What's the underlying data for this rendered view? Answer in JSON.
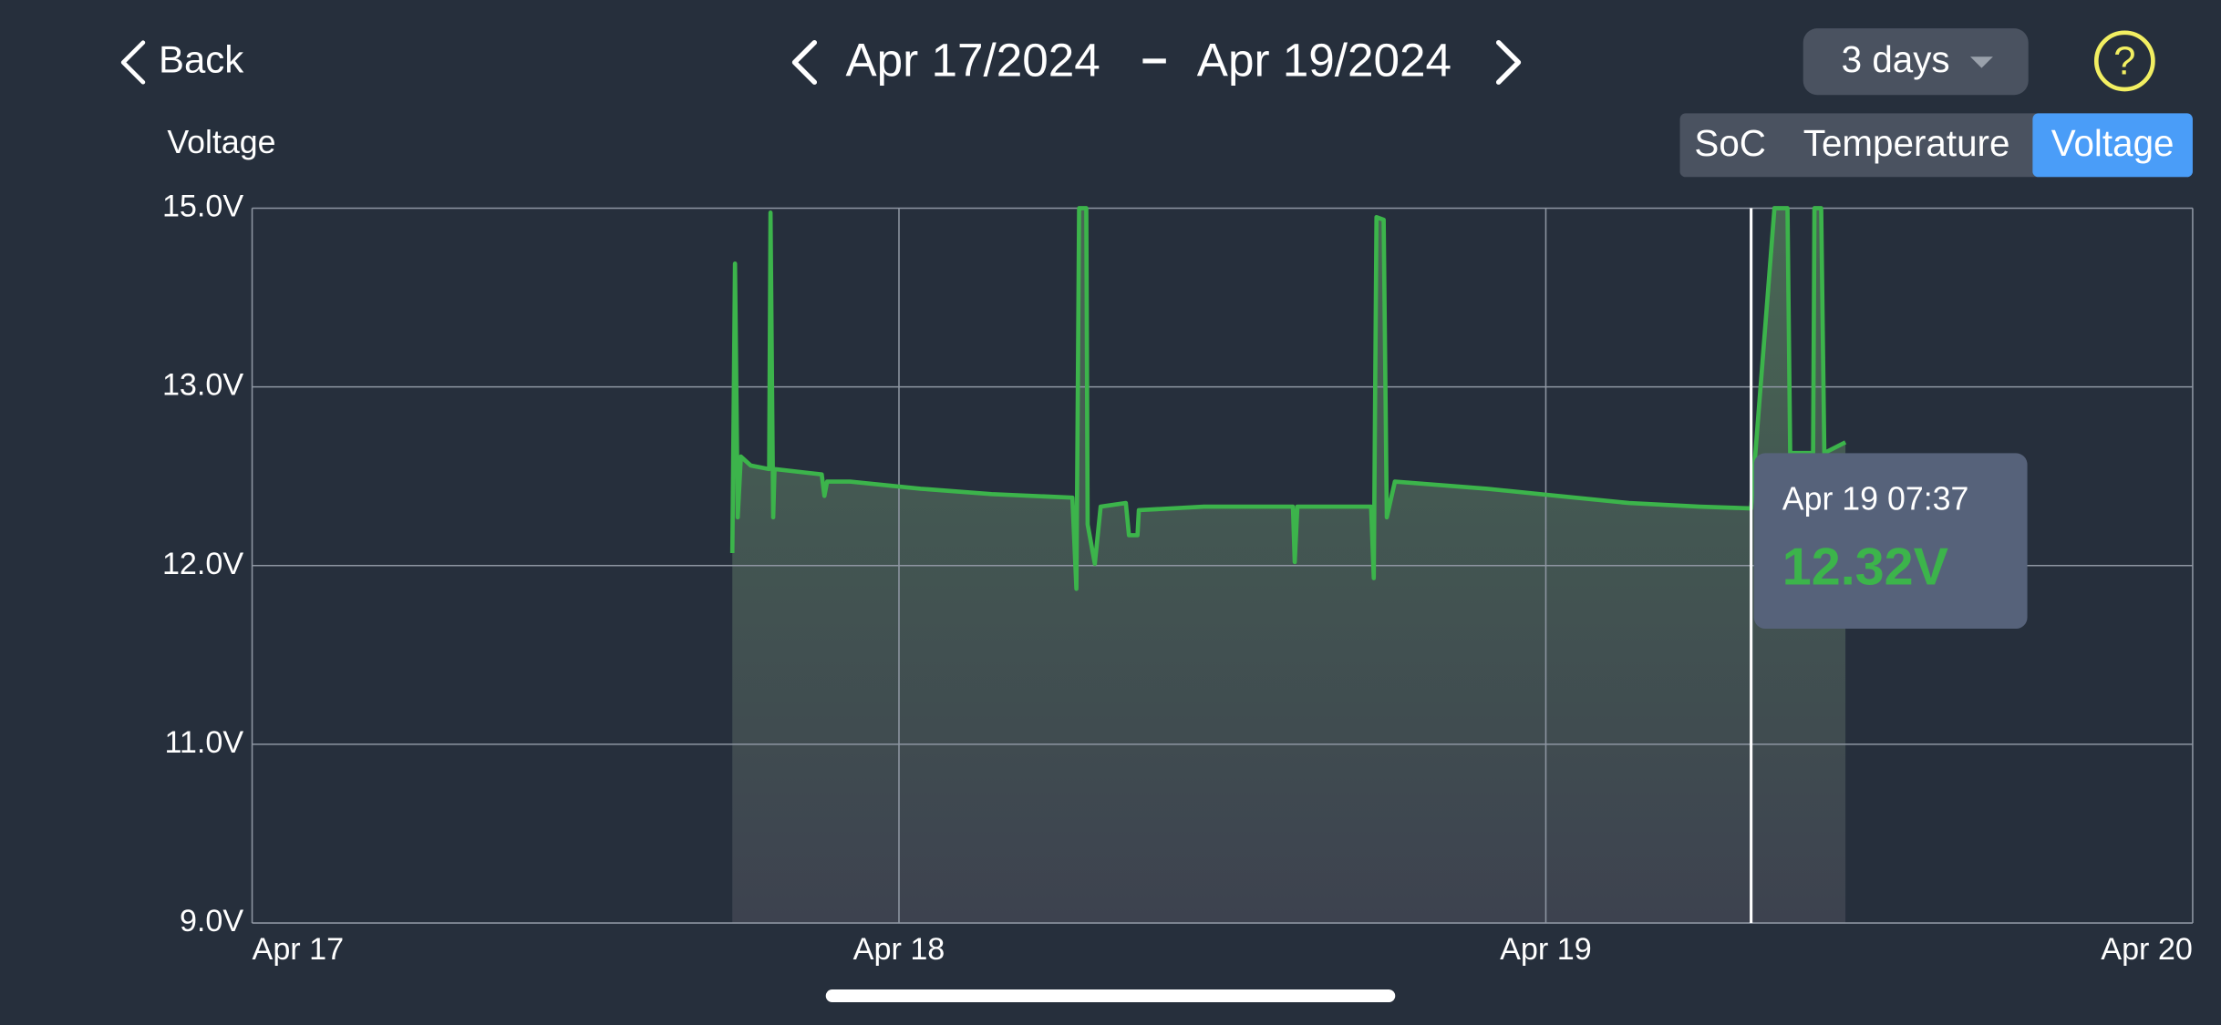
{
  "header": {
    "back": "Back",
    "start_date": "Apr 17/2024",
    "separator": "–",
    "end_date": "Apr 19/2024",
    "period": "3 days",
    "help": "?"
  },
  "tabs": [
    "SoC",
    "Temperature",
    "Voltage"
  ],
  "selected_tab": "Voltage",
  "chart_data": {
    "type": "line",
    "y_label": "Voltage",
    "x": [
      "Apr 17 17:49",
      "Apr 17 17:55",
      "Apr 17 18:01",
      "Apr 17 18:08",
      "Apr 17 18:30",
      "Apr 17 19:11",
      "Apr 17 19:14",
      "Apr 17 19:20",
      "Apr 17 19:23",
      "Apr 17 21:08",
      "Apr 17 21:14",
      "Apr 17 21:20",
      "Apr 17 22:11",
      "Apr 18 00:48",
      "Apr 18 03:26",
      "Apr 18 06:26",
      "Apr 18 06:35",
      "Apr 18 06:41",
      "Apr 18 06:57",
      "Apr 18 07:00",
      "Apr 18 07:16",
      "Apr 18 07:29",
      "Apr 18 08:25",
      "Apr 18 08:32",
      "Apr 18 08:51",
      "Apr 18 08:54",
      "Apr 18 11:19",
      "Apr 18 14:37",
      "Apr 18 14:41",
      "Apr 18 14:47",
      "Apr 18 17:31",
      "Apr 18 17:37",
      "Apr 18 17:43",
      "Apr 18 17:59",
      "Apr 18 18:06",
      "Apr 18 18:24",
      "Apr 18 21:49",
      "Apr 19 00:27",
      "Apr 19 03:05",
      "Apr 19 05:42",
      "Apr 19 07:37",
      "Apr 19 08:29",
      "Apr 19 08:58",
      "Apr 19 09:04",
      "Apr 19 09:55",
      "Apr 19 09:58",
      "Apr 19 10:13",
      "Apr 19 10:20",
      "Apr 19 11:07"
    ],
    "values": [
      12.07,
      14.38,
      12.27,
      12.61,
      12.56,
      12.54,
      14.95,
      12.27,
      12.54,
      12.51,
      12.39,
      12.47,
      12.47,
      12.43,
      12.4,
      12.38,
      11.87,
      15.0,
      15.0,
      12.23,
      12.01,
      12.33,
      12.35,
      12.17,
      12.17,
      12.31,
      12.33,
      12.33,
      12.02,
      12.33,
      12.33,
      11.93,
      14.9,
      14.87,
      12.27,
      12.47,
      12.43,
      12.39,
      12.35,
      12.33,
      12.32,
      15.0,
      15.0,
      12.63,
      12.63,
      15.0,
      15.0,
      12.63,
      12.69
    ],
    "color": "#3cb44b",
    "area": true,
    "xlim": [
      "Apr 17",
      "Apr 20"
    ],
    "xticks": [
      "Apr 17",
      "Apr 18",
      "Apr 19",
      "Apr 20"
    ],
    "ylim": [
      9,
      15
    ],
    "yticks": [
      {
        "value": 15,
        "label": "15.0V"
      },
      {
        "value": 13,
        "label": "13.0V"
      },
      {
        "value": 12,
        "label": "12.0V"
      },
      {
        "value": 11,
        "label": "11.0V"
      },
      {
        "value": 9,
        "label": "9.0V"
      }
    ],
    "grid": true,
    "tooltip": {
      "label": "Apr 19 07:37",
      "value": 12.32,
      "value_label": "12.32V"
    }
  }
}
